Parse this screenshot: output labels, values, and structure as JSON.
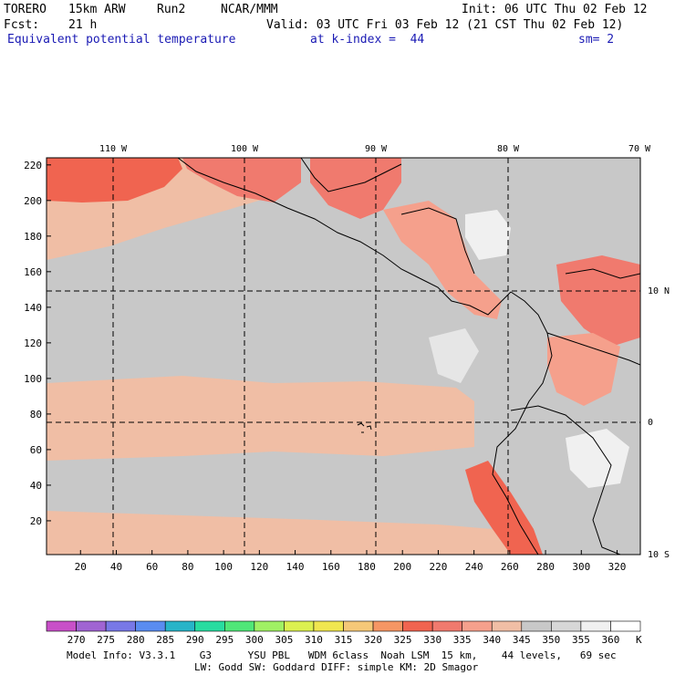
{
  "header": {
    "model": "TORERO",
    "resolution": "15km ARW",
    "run": "Run2",
    "org": "NCAR/MMM",
    "init": "Init: 06 UTC Thu 02 Feb 12",
    "fcst_label": "Fcst:",
    "fcst_value": "21 h",
    "valid": "Valid: 03 UTC Fri 03 Feb 12 (21 CST Thu 02 Feb 12)",
    "field": "Equivalent potential temperature",
    "level": "at k-index =  44",
    "smoothing": "sm= 2"
  },
  "map": {
    "lon_labels": [
      "110 W",
      "100 W",
      "90 W",
      "80 W",
      "70 W"
    ],
    "lat_labels": [
      "10 N",
      "0",
      "10 S"
    ],
    "x_ticks": [
      "20",
      "40",
      "60",
      "80",
      "100",
      "120",
      "140",
      "160",
      "180",
      "200",
      "220",
      "240",
      "260",
      "280",
      "300",
      "320"
    ],
    "y_ticks": [
      "220",
      "200",
      "180",
      "160",
      "140",
      "120",
      "100",
      "80",
      "60",
      "40",
      "20"
    ],
    "x_range": [
      1,
      333
    ],
    "y_range": [
      1,
      224
    ]
  },
  "legend": {
    "unit": "K",
    "levels": [
      "270",
      "275",
      "280",
      "285",
      "290",
      "295",
      "300",
      "305",
      "310",
      "315",
      "320",
      "325",
      "330",
      "335",
      "340",
      "345",
      "350",
      "355",
      "360"
    ],
    "colors": [
      "#c850c8",
      "#a064d2",
      "#7878e6",
      "#5a8cf0",
      "#28b4c8",
      "#28dca0",
      "#50e678",
      "#a0f064",
      "#dcf050",
      "#f0e650",
      "#f5c878",
      "#f59664",
      "#f06450",
      "#f07a6e",
      "#f5a08c",
      "#f0bea5",
      "#c8c8c8",
      "#d7d7d7",
      "#f0f0f0",
      "#ffffff"
    ]
  },
  "footer": {
    "line1": "Model Info: V3.3.1    G3      YSU PBL   WDM 6class  Noah LSM  15 km,    44 levels,   69 sec",
    "line2": "LW: Godd SW: Goddard DIFF: simple KM: 2D Smagor"
  }
}
